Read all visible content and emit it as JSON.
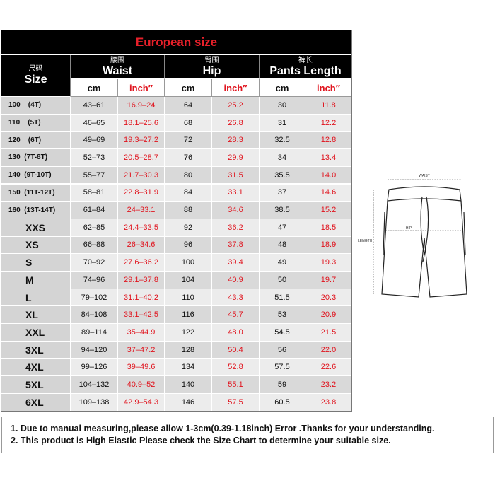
{
  "table": {
    "title": "European size",
    "headers": [
      {
        "zh": "尺码",
        "en": "Size"
      },
      {
        "zh": "腰围",
        "en": "Waist"
      },
      {
        "zh": "臀围",
        "en": "Hip"
      },
      {
        "zh": "裤长",
        "en": "Pants Length"
      }
    ],
    "units": [
      "cm",
      "inch″",
      "cm",
      "inch″",
      "cm",
      "inch″"
    ],
    "rows": [
      [
        "100    (4T)",
        "43–61",
        "16.9–24",
        "64",
        "25.2",
        "30",
        "11.8"
      ],
      [
        "110    (5T)",
        "46–65",
        "18.1–25.6",
        "68",
        "26.8",
        "31",
        "12.2"
      ],
      [
        "120    (6T)",
        "49–69",
        "19.3–27.2",
        "72",
        "28.3",
        "32.5",
        "12.8"
      ],
      [
        "130  (7T-8T)",
        "52–73",
        "20.5–28.7",
        "76",
        "29.9",
        "34",
        "13.4"
      ],
      [
        "140  (9T-10T)",
        "55–77",
        "21.7–30.3",
        "80",
        "31.5",
        "35.5",
        "14.0"
      ],
      [
        "150  (11T-12T)",
        "58–81",
        "22.8–31.9",
        "84",
        "33.1",
        "37",
        "14.6"
      ],
      [
        "160  (13T-14T)",
        "61–84",
        "24–33.1",
        "88",
        "34.6",
        "38.5",
        "15.2"
      ],
      [
        "XXS",
        "62–85",
        "24.4–33.5",
        "92",
        "36.2",
        "47",
        "18.5"
      ],
      [
        "XS",
        "66–88",
        "26–34.6",
        "96",
        "37.8",
        "48",
        "18.9"
      ],
      [
        "S",
        "70–92",
        "27.6–36.2",
        "100",
        "39.4",
        "49",
        "19.3"
      ],
      [
        "M",
        "74–96",
        "29.1–37.8",
        "104",
        "40.9",
        "50",
        "19.7"
      ],
      [
        "L",
        "79–102",
        "31.1–40.2",
        "110",
        "43.3",
        "51.5",
        "20.3"
      ],
      [
        "XL",
        "84–108",
        "33.1–42.5",
        "116",
        "45.7",
        "53",
        "20.9"
      ],
      [
        "XXL",
        "89–114",
        "35–44.9",
        "122",
        "48.0",
        "54.5",
        "21.5"
      ],
      [
        "3XL",
        "94–120",
        "37–47.2",
        "128",
        "50.4",
        "56",
        "22.0"
      ],
      [
        "4XL",
        "99–126",
        "39–49.6",
        "134",
        "52.8",
        "57.5",
        "22.6"
      ],
      [
        "5XL",
        "104–132",
        "40.9–52",
        "140",
        "55.1",
        "59",
        "23.2"
      ],
      [
        "6XL",
        "109–138",
        "42.9–54.3",
        "146",
        "57.5",
        "60.5",
        "23.8"
      ]
    ]
  },
  "diagram": {
    "waist": "WAIST",
    "hip": "HIP",
    "length": "LENGTH"
  },
  "notes": [
    "1. Due to manual measuring,please allow 1-3cm(0.39-1.18inch) Error .Thanks for your understanding.",
    "2. This product is High Elastic Please check the Size Chart to determine your suitable size."
  ]
}
